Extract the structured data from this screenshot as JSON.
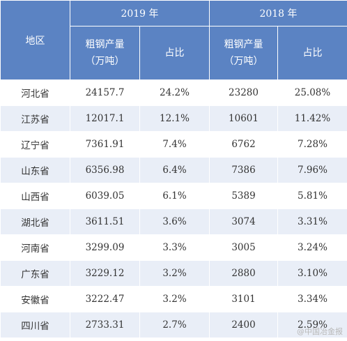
{
  "header": {
    "region_label": "地区",
    "year_2019": "2019 年",
    "year_2018": "2018 年",
    "output_label_line1": "粗钢产量",
    "output_label_line2": "（万吨）",
    "share_label": "占比"
  },
  "rows": [
    {
      "region": "河北省",
      "v2019": "24157.7",
      "p2019": "24.2%",
      "v2018": "23280",
      "p2018": "25.08%"
    },
    {
      "region": "江苏省",
      "v2019": "12017.1",
      "p2019": "12.1%",
      "v2018": "10601",
      "p2018": "11.42%"
    },
    {
      "region": "辽宁省",
      "v2019": "7361.91",
      "p2019": "7.4%",
      "v2018": "6762",
      "p2018": "7.28%"
    },
    {
      "region": "山东省",
      "v2019": "6356.98",
      "p2019": "6.4%",
      "v2018": "7386",
      "p2018": "7.96%"
    },
    {
      "region": "山西省",
      "v2019": "6039.05",
      "p2019": "6.1%",
      "v2018": "5389",
      "p2018": "5.81%"
    },
    {
      "region": "湖北省",
      "v2019": "3611.51",
      "p2019": "3.6%",
      "v2018": "3074",
      "p2018": "3.31%"
    },
    {
      "region": "河南省",
      "v2019": "3299.09",
      "p2019": "3.3%",
      "v2018": "3005",
      "p2018": "3.24%"
    },
    {
      "region": "广东省",
      "v2019": "3229.12",
      "p2019": "3.2%",
      "v2018": "2880",
      "p2018": "3.10%"
    },
    {
      "region": "安徽省",
      "v2019": "3222.47",
      "p2019": "3.2%",
      "v2018": "3101",
      "p2018": "3.34%"
    },
    {
      "region": "四川省",
      "v2019": "2733.31",
      "p2019": "2.7%",
      "v2018": "2400",
      "p2018": "2.59%"
    }
  ],
  "watermark": "@中国冶金报"
}
